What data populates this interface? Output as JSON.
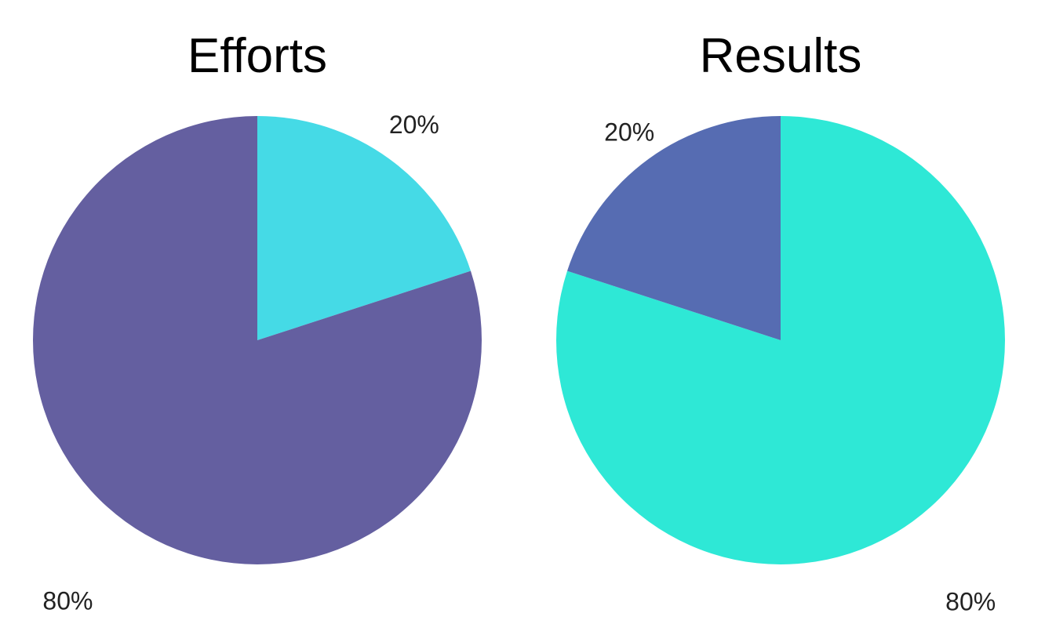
{
  "chart_data": [
    {
      "type": "pie",
      "title": "Efforts",
      "slices": [
        {
          "label": "20%",
          "value": 20,
          "color": "#45dae6"
        },
        {
          "label": "80%",
          "value": 80,
          "color": "#645fa0"
        }
      ],
      "start": "12 o'clock",
      "direction": "clockwise"
    },
    {
      "type": "pie",
      "title": "Results",
      "slices": [
        {
          "label": "80%",
          "value": 80,
          "color": "#2ee8d6"
        },
        {
          "label": "20%",
          "value": 20,
          "color": "#566cb2"
        }
      ],
      "start": "12 o'clock",
      "direction": "clockwise"
    }
  ]
}
